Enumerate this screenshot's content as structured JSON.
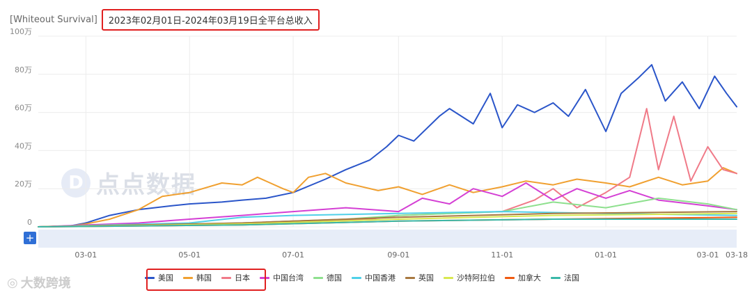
{
  "header": {
    "app_name": "[Whiteout Survival]",
    "title": "2023年02月01日-2024年03月19日全平台总收入"
  },
  "watermarks": {
    "center": "点点数据",
    "bottom": "大数跨境"
  },
  "controls": {
    "add_label": "+"
  },
  "chart_data": {
    "type": "line",
    "title": "2023年02月01日-2024年03月19日全平台总收入",
    "x_start": "2023-02-01",
    "x_end": "2024-03-18",
    "x_ticks": [
      "03-01",
      "05-01",
      "07-01",
      "09-01",
      "11-01",
      "01-01",
      "03-01",
      "03-18"
    ],
    "y_ticks": [
      "0",
      "20万",
      "40万",
      "60万",
      "80万",
      "100万"
    ],
    "ylim": [
      0,
      1000000
    ],
    "grid": true,
    "legend_position": "bottom",
    "series": [
      {
        "name": "美国",
        "color": "#2a55c9",
        "x": [
          "2023-02-01",
          "2023-02-20",
          "2023-03-01",
          "2023-03-15",
          "2023-04-01",
          "2023-04-20",
          "2023-05-01",
          "2023-05-20",
          "2023-06-01",
          "2023-06-15",
          "2023-07-01",
          "2023-07-20",
          "2023-08-01",
          "2023-08-15",
          "2023-08-25",
          "2023-09-01",
          "2023-09-10",
          "2023-09-25",
          "2023-10-01",
          "2023-10-15",
          "2023-10-25",
          "2023-11-01",
          "2023-11-10",
          "2023-11-20",
          "2023-12-01",
          "2023-12-10",
          "2023-12-20",
          "2024-01-01",
          "2024-01-10",
          "2024-01-20",
          "2024-01-28",
          "2024-02-05",
          "2024-02-15",
          "2024-02-25",
          "2024-03-05",
          "2024-03-12",
          "2024-03-18"
        ],
        "values": [
          0,
          5000,
          20000,
          60000,
          90000,
          110000,
          120000,
          130000,
          140000,
          150000,
          180000,
          250000,
          300000,
          350000,
          420000,
          480000,
          450000,
          580000,
          620000,
          540000,
          700000,
          520000,
          640000,
          600000,
          650000,
          580000,
          720000,
          500000,
          700000,
          780000,
          850000,
          660000,
          760000,
          620000,
          790000,
          700000,
          630000
        ]
      },
      {
        "name": "韩国",
        "color": "#f0a030",
        "x": [
          "2023-02-01",
          "2023-02-20",
          "2023-03-01",
          "2023-03-15",
          "2023-04-01",
          "2023-04-15",
          "2023-05-01",
          "2023-05-20",
          "2023-06-01",
          "2023-06-10",
          "2023-06-25",
          "2023-07-01",
          "2023-07-10",
          "2023-07-20",
          "2023-08-01",
          "2023-08-20",
          "2023-09-01",
          "2023-09-15",
          "2023-10-01",
          "2023-10-15",
          "2023-11-01",
          "2023-11-15",
          "2023-12-01",
          "2023-12-15",
          "2024-01-01",
          "2024-01-15",
          "2024-02-01",
          "2024-02-15",
          "2024-03-01",
          "2024-03-10",
          "2024-03-18"
        ],
        "values": [
          0,
          5000,
          15000,
          40000,
          90000,
          160000,
          180000,
          230000,
          220000,
          260000,
          200000,
          180000,
          260000,
          280000,
          230000,
          190000,
          210000,
          170000,
          220000,
          180000,
          210000,
          240000,
          220000,
          250000,
          230000,
          210000,
          260000,
          220000,
          240000,
          310000,
          280000
        ]
      },
      {
        "name": "日本",
        "color": "#f07a88",
        "x": [
          "2023-02-01",
          "2023-05-01",
          "2023-07-01",
          "2023-08-15",
          "2023-09-01",
          "2023-10-01",
          "2023-11-01",
          "2023-11-20",
          "2023-12-01",
          "2023-12-15",
          "2024-01-01",
          "2024-01-15",
          "2024-01-25",
          "2024-02-01",
          "2024-02-10",
          "2024-02-20",
          "2024-03-01",
          "2024-03-10",
          "2024-03-18"
        ],
        "values": [
          0,
          10000,
          30000,
          40000,
          60000,
          70000,
          80000,
          140000,
          200000,
          100000,
          180000,
          260000,
          620000,
          300000,
          580000,
          240000,
          420000,
          300000,
          280000
        ]
      },
      {
        "name": "中国台湾",
        "color": "#d43fd4",
        "x": [
          "2023-02-01",
          "2023-04-01",
          "2023-05-01",
          "2023-06-01",
          "2023-07-01",
          "2023-08-01",
          "2023-09-01",
          "2023-09-15",
          "2023-10-01",
          "2023-10-15",
          "2023-11-01",
          "2023-11-15",
          "2023-12-01",
          "2023-12-15",
          "2024-01-01",
          "2024-01-15",
          "2024-02-01",
          "2024-03-01",
          "2024-03-18"
        ],
        "values": [
          0,
          20000,
          40000,
          60000,
          80000,
          100000,
          80000,
          150000,
          120000,
          200000,
          160000,
          230000,
          140000,
          200000,
          150000,
          190000,
          140000,
          110000,
          90000
        ]
      },
      {
        "name": "德国",
        "color": "#8ee08e",
        "x": [
          "2023-02-01",
          "2023-06-01",
          "2023-08-01",
          "2023-09-01",
          "2023-11-01",
          "2023-12-01",
          "2024-01-01",
          "2024-02-01",
          "2024-03-01",
          "2024-03-18"
        ],
        "values": [
          0,
          20000,
          40000,
          60000,
          80000,
          130000,
          100000,
          150000,
          120000,
          90000
        ]
      },
      {
        "name": "中国香港",
        "color": "#4fd0e8",
        "x": [
          "2023-02-01",
          "2023-05-01",
          "2023-06-01",
          "2023-07-01",
          "2023-09-01",
          "2023-11-01",
          "2024-01-01",
          "2024-03-18"
        ],
        "values": [
          0,
          20000,
          50000,
          60000,
          70000,
          80000,
          70000,
          60000
        ]
      },
      {
        "name": "英国",
        "color": "#a87840",
        "x": [
          "2023-02-01",
          "2023-06-01",
          "2023-09-01",
          "2023-12-01",
          "2024-03-18"
        ],
        "values": [
          0,
          20000,
          50000,
          70000,
          80000
        ]
      },
      {
        "name": "沙特阿拉伯",
        "color": "#d8e850",
        "x": [
          "2023-02-01",
          "2023-06-01",
          "2023-09-01",
          "2023-12-01",
          "2024-03-18"
        ],
        "values": [
          0,
          15000,
          40000,
          60000,
          70000
        ]
      },
      {
        "name": "加拿大",
        "color": "#f05a10",
        "x": [
          "2023-02-01",
          "2023-06-01",
          "2023-09-01",
          "2023-12-01",
          "2024-03-18"
        ],
        "values": [
          0,
          10000,
          30000,
          40000,
          50000
        ]
      },
      {
        "name": "法国",
        "color": "#3ab8a8",
        "x": [
          "2023-02-01",
          "2023-06-01",
          "2023-09-01",
          "2023-12-01",
          "2024-03-18"
        ],
        "values": [
          0,
          10000,
          30000,
          40000,
          40000
        ]
      }
    ]
  }
}
